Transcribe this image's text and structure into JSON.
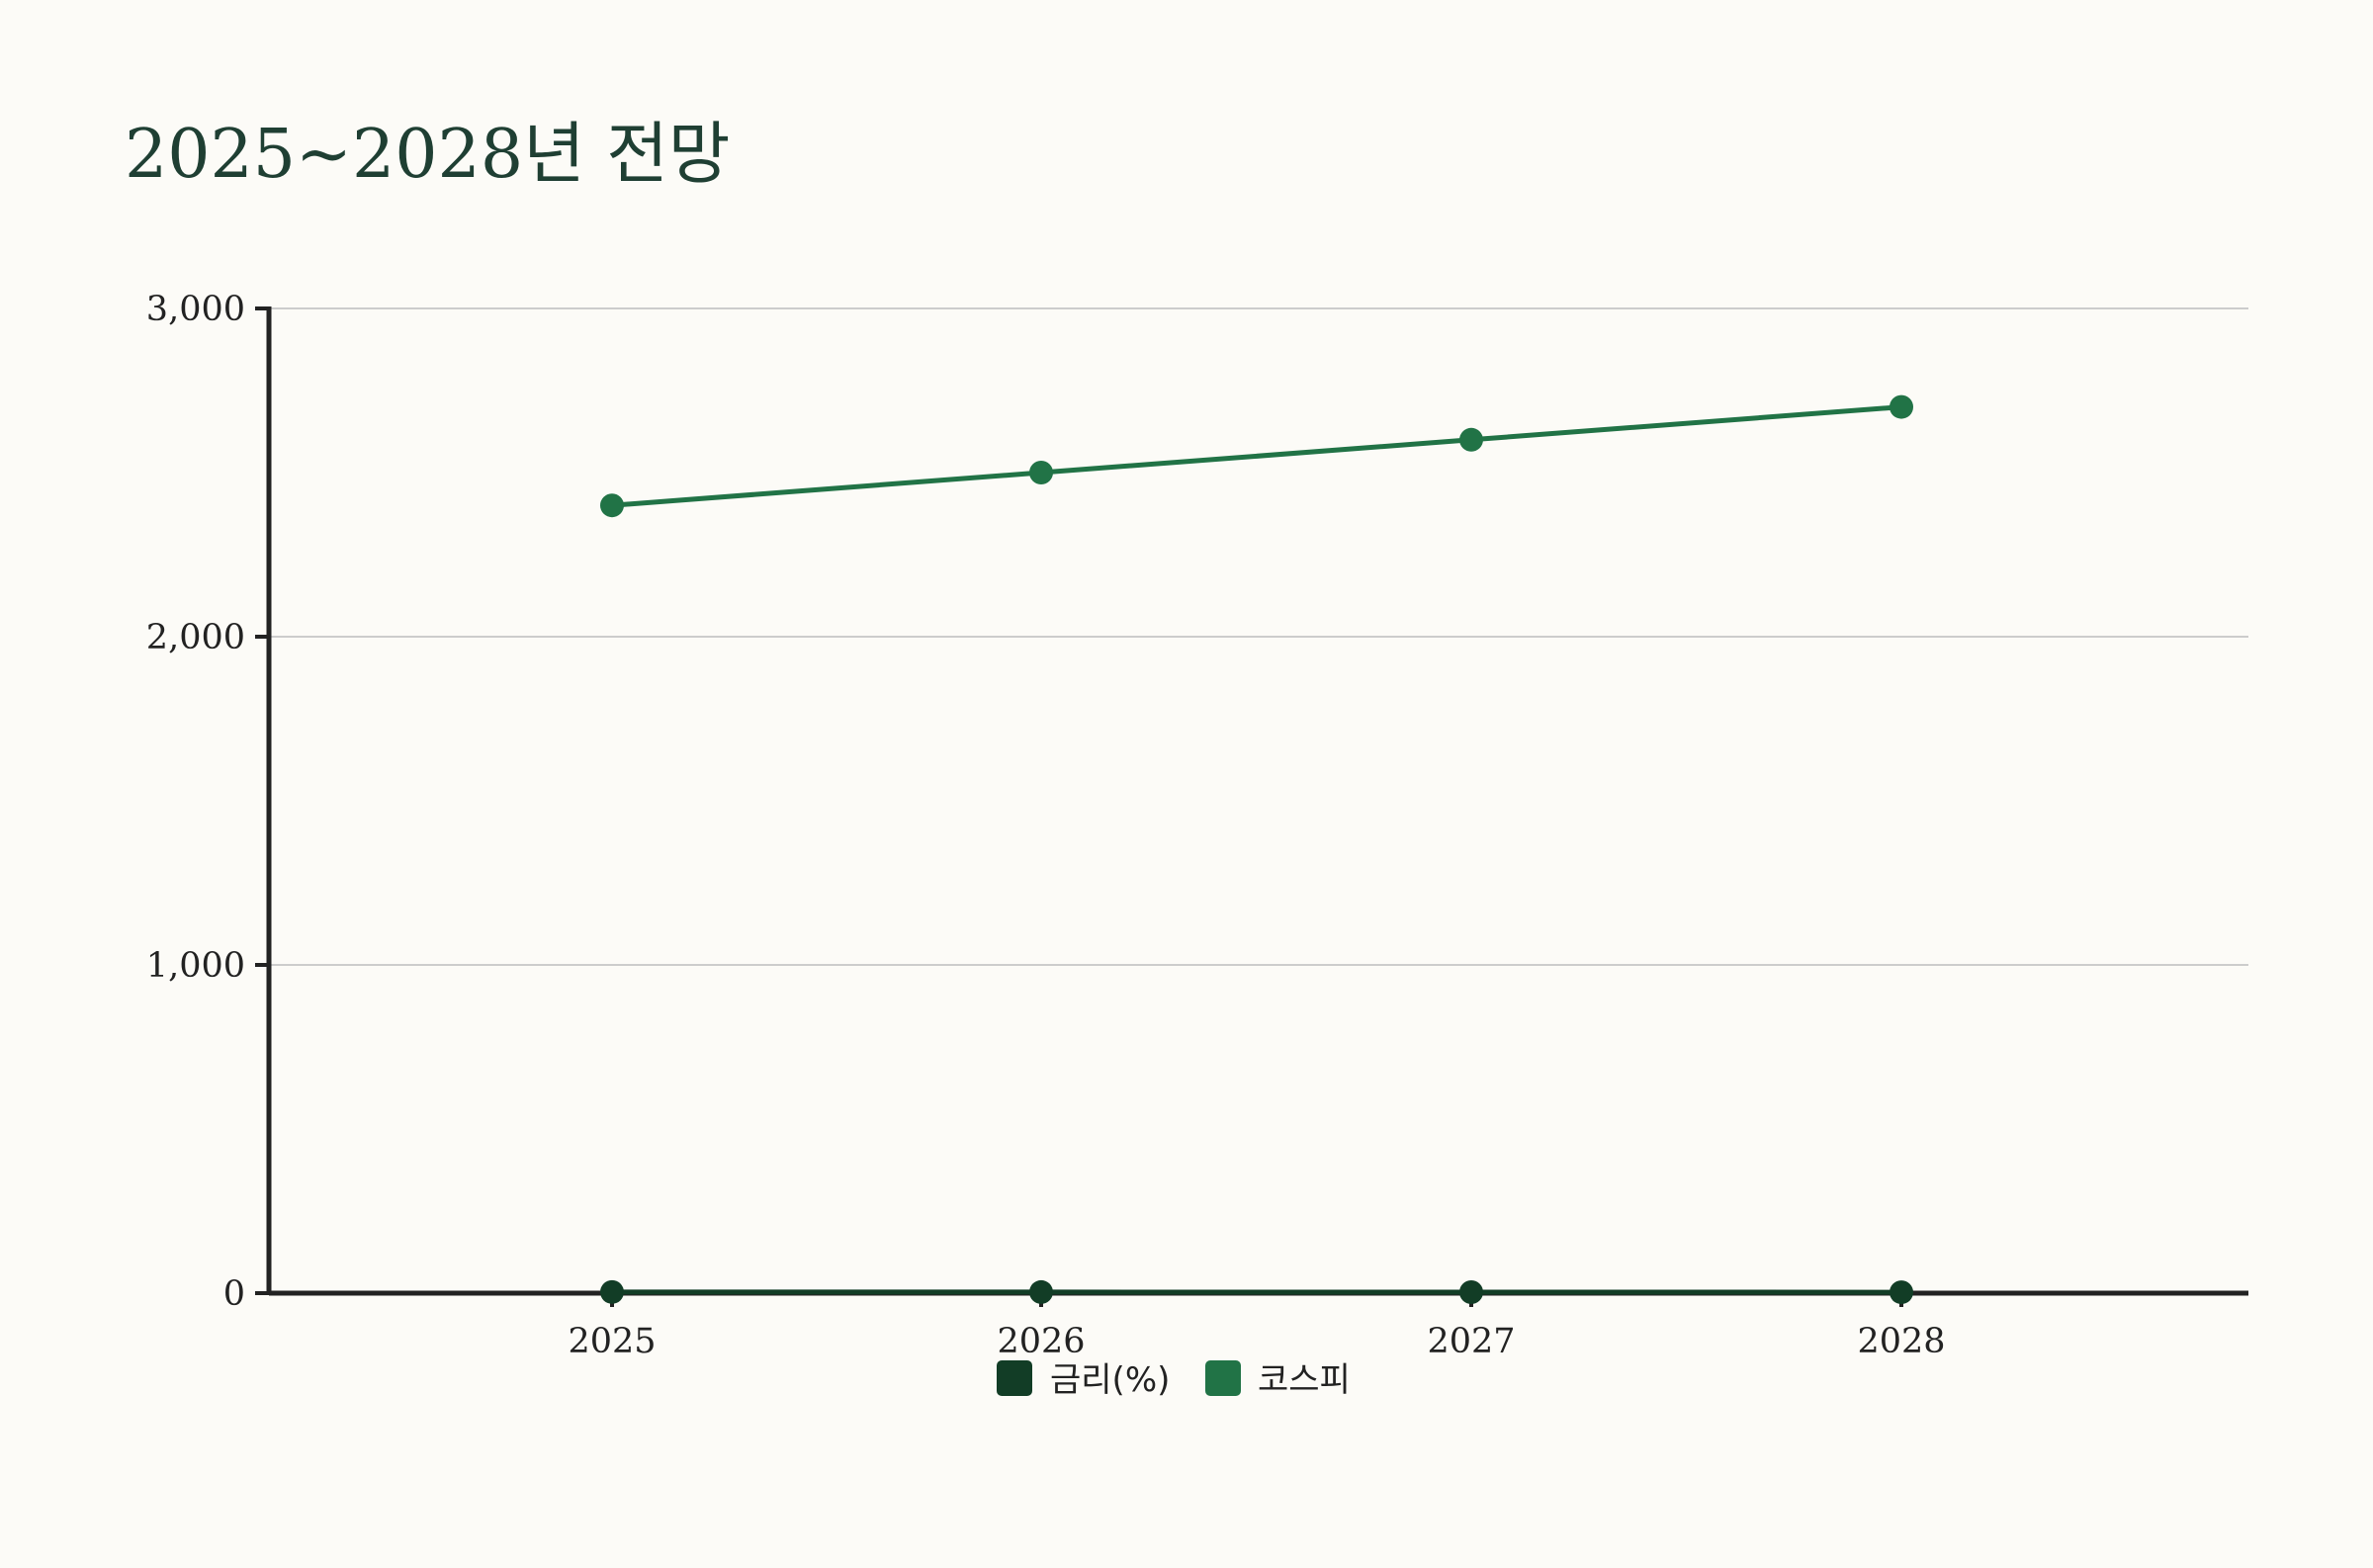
{
  "title": "2025~2028년 전망",
  "chart_data": {
    "type": "line",
    "title": "2025~2028년 전망",
    "xlabel": "",
    "ylabel": "",
    "categories": [
      "2025",
      "2026",
      "2027",
      "2028"
    ],
    "y_ticks": [
      "0",
      "1,000",
      "2,000",
      "3,000"
    ],
    "y_tick_values": [
      0,
      1000,
      2000,
      3000
    ],
    "ylim": [
      0,
      3000
    ],
    "grid": true,
    "legend_position": "bottom",
    "series": [
      {
        "name": "금리(%)",
        "values": [
          3.5,
          3.25,
          3.0,
          2.75
        ],
        "color": "#123d26"
      },
      {
        "name": "코스피",
        "values": [
          2400,
          2500,
          2600,
          2700
        ],
        "color": "#217346"
      }
    ]
  },
  "colors": {
    "background": "#fcfbf7",
    "title": "#1f3f33",
    "axis": "#222222",
    "grid": "#cccccc"
  }
}
